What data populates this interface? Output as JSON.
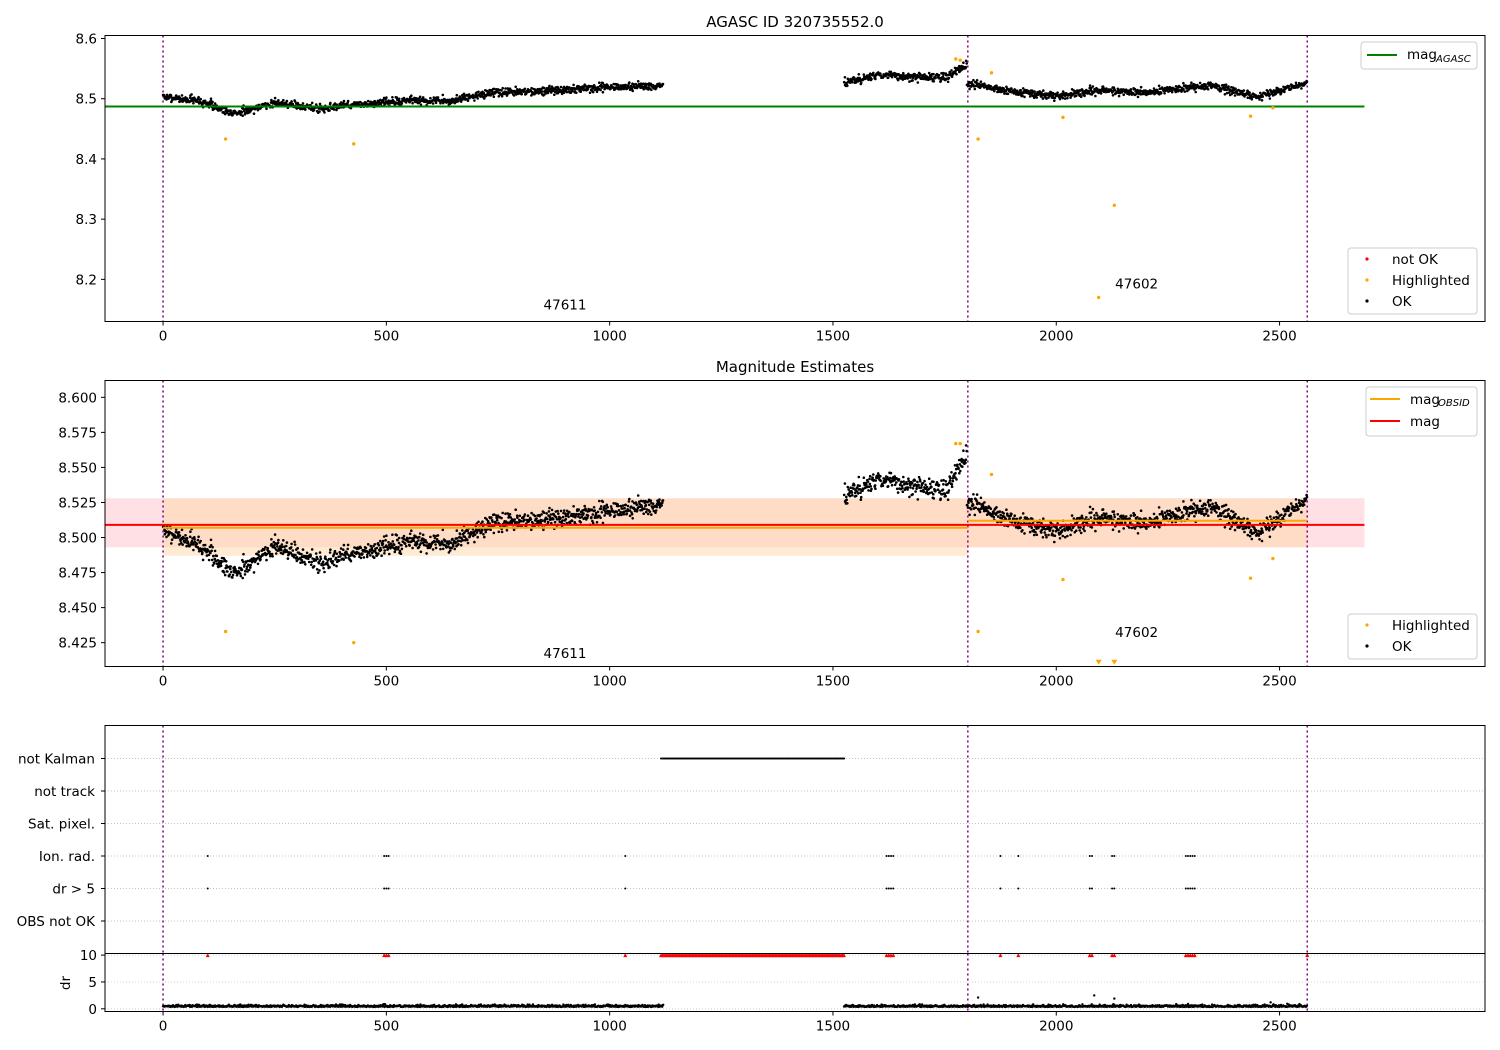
{
  "chart_data": [
    {
      "type": "scatter",
      "title": "AGASC ID 320735552.0",
      "xlim": [
        -130,
        2960
      ],
      "ylim": [
        8.13,
        8.605
      ],
      "xticks": [
        "0",
        "500",
        "1000",
        "1500",
        "2000",
        "2500"
      ],
      "xtick_values": [
        0,
        500,
        1000,
        1500,
        2000,
        2500
      ],
      "yticks": [
        "8.2",
        "8.3",
        "8.4",
        "8.5",
        "8.6"
      ],
      "ytick_values": [
        8.2,
        8.3,
        8.4,
        8.5,
        8.6
      ],
      "vlines": [
        0,
        1802,
        2562
      ],
      "obsid_labels": [
        {
          "text": "47611",
          "x": 900,
          "y": 8.15
        },
        {
          "text": "47602",
          "x": 2180,
          "y": 8.185
        }
      ],
      "mag_agasc": {
        "value": 8.487,
        "x": [
          -130,
          2690
        ],
        "color": "#008000"
      },
      "legend_top": [
        {
          "label": "mag",
          "sub": "AGASC",
          "color": "#008000"
        }
      ],
      "legend_bottom": [
        {
          "label": "not OK",
          "color": "#ff0000"
        },
        {
          "label": "Highlighted",
          "color": "#ffa500"
        },
        {
          "label": "OK",
          "color": "#000000"
        }
      ],
      "highlighted": [
        [
          140,
          8.433
        ],
        [
          427,
          8.425
        ],
        [
          1775,
          8.566
        ],
        [
          1785,
          8.564
        ],
        [
          1825,
          8.433
        ],
        [
          1855,
          8.543
        ],
        [
          2015,
          8.469
        ],
        [
          2095,
          8.17
        ],
        [
          2130,
          8.323
        ],
        [
          2435,
          8.471
        ],
        [
          2485,
          8.485
        ]
      ],
      "ok_segments": [
        {
          "x": [
            0,
            1120
          ],
          "y": [
            [
              0,
              8.503
            ],
            [
              80,
              8.497
            ],
            [
              160,
              8.475
            ],
            [
              250,
              8.493
            ],
            [
              350,
              8.484
            ],
            [
              450,
              8.491
            ],
            [
              550,
              8.497
            ],
            [
              650,
              8.496
            ],
            [
              730,
              8.51
            ],
            [
              850,
              8.512
            ],
            [
              950,
              8.518
            ],
            [
              1120,
              8.522
            ]
          ],
          "noise": 0.0055
        },
        {
          "x": [
            1525,
            1800
          ],
          "y": [
            [
              1525,
              8.525
            ],
            [
              1600,
              8.54
            ],
            [
              1700,
              8.535
            ],
            [
              1750,
              8.535
            ],
            [
              1800,
              8.555
            ]
          ],
          "noise": 0.006
        },
        {
          "x": [
            1800,
            2562
          ],
          "y": [
            [
              1800,
              8.525
            ],
            [
              1900,
              8.512
            ],
            [
              2000,
              8.505
            ],
            [
              2100,
              8.514
            ],
            [
              2200,
              8.51
            ],
            [
              2350,
              8.522
            ],
            [
              2450,
              8.503
            ],
            [
              2562,
              8.525
            ]
          ],
          "noise": 0.0055
        }
      ]
    },
    {
      "type": "scatter",
      "title": "Magnitude Estimates",
      "xlim": [
        -130,
        2960
      ],
      "ylim": [
        8.408,
        8.612
      ],
      "xticks": [
        "0",
        "500",
        "1000",
        "1500",
        "2000",
        "2500"
      ],
      "xtick_values": [
        0,
        500,
        1000,
        1500,
        2000,
        2500
      ],
      "yticks": [
        "8.425",
        "8.450",
        "8.475",
        "8.500",
        "8.525",
        "8.550",
        "8.575",
        "8.600"
      ],
      "ytick_values": [
        8.425,
        8.45,
        8.475,
        8.5,
        8.525,
        8.55,
        8.575,
        8.6
      ],
      "vlines": [
        0,
        1802,
        2562
      ],
      "obsid_labels": [
        {
          "text": "47611",
          "x": 900,
          "y": 8.414
        },
        {
          "text": "47602",
          "x": 2180,
          "y": 8.429
        }
      ],
      "mag_line": {
        "value": 8.509,
        "x": [
          -130,
          2690
        ],
        "band": [
          8.493,
          8.528
        ],
        "color": "#ff0000",
        "band_color": "#ff9aa8"
      },
      "obsid_mag": [
        {
          "x": [
            0,
            1802
          ],
          "value": 8.507,
          "band": [
            8.487,
            8.528
          ],
          "color": "#ffa500",
          "band_color": "#ffd8a8"
        },
        {
          "x": [
            1802,
            2562
          ],
          "value": 8.512,
          "band": [
            8.493,
            8.528
          ],
          "color": "#ffa500",
          "band_color": "#ffd8a8"
        }
      ],
      "legend_top": [
        {
          "label": "mag",
          "sub": "OBSID",
          "color": "#ffa500"
        },
        {
          "label": "mag",
          "sub": "",
          "color": "#ff0000"
        }
      ],
      "legend_bottom": [
        {
          "label": "Highlighted",
          "color": "#ffa500"
        },
        {
          "label": "OK",
          "color": "#000000"
        }
      ],
      "highlighted": [
        [
          140,
          8.433
        ],
        [
          427,
          8.425
        ],
        [
          1775,
          8.567
        ],
        [
          1785,
          8.567
        ],
        [
          1825,
          8.433
        ],
        [
          1855,
          8.545
        ],
        [
          2015,
          8.47
        ],
        [
          2435,
          8.471
        ],
        [
          2485,
          8.485
        ]
      ],
      "lower_limits": [
        [
          2095,
          8.41
        ],
        [
          2130,
          8.41
        ]
      ],
      "ok_segments": [
        {
          "x": [
            0,
            1120
          ],
          "y": [
            [
              0,
              8.505
            ],
            [
              80,
              8.495
            ],
            [
              160,
              8.474
            ],
            [
              250,
              8.494
            ],
            [
              350,
              8.482
            ],
            [
              450,
              8.49
            ],
            [
              550,
              8.497
            ],
            [
              650,
              8.495
            ],
            [
              730,
              8.51
            ],
            [
              850,
              8.512
            ],
            [
              950,
              8.517
            ],
            [
              1120,
              8.524
            ]
          ],
          "noise": 0.0055
        },
        {
          "x": [
            1525,
            1800
          ],
          "y": [
            [
              1525,
              8.528
            ],
            [
              1600,
              8.542
            ],
            [
              1700,
              8.535
            ],
            [
              1750,
              8.533
            ],
            [
              1800,
              8.558
            ]
          ],
          "noise": 0.006
        },
        {
          "x": [
            1800,
            2562
          ],
          "y": [
            [
              1800,
              8.525
            ],
            [
              1900,
              8.512
            ],
            [
              2000,
              8.505
            ],
            [
              2100,
              8.514
            ],
            [
              2200,
              8.51
            ],
            [
              2350,
              8.522
            ],
            [
              2450,
              8.503
            ],
            [
              2562,
              8.526
            ]
          ],
          "noise": 0.0055
        }
      ]
    },
    {
      "type": "scatter",
      "title": "",
      "xlim": [
        -130,
        2960
      ],
      "categories": [
        "not Kalman",
        "not track",
        "Sat. pixel.",
        "Ion. rad.",
        "dr > 5",
        "OBS not OK"
      ],
      "vlines": [
        0,
        1802,
        2562
      ],
      "not_kalman": [
        1115,
        1525
      ],
      "ion_rad": [
        100,
        495,
        500,
        505,
        1035,
        1620,
        1625,
        1630,
        1635,
        1875,
        1915,
        2075,
        2080,
        2125,
        2130,
        2290,
        2295,
        2300,
        2305,
        2310
      ],
      "dr_gt_5": [
        100,
        495,
        500,
        505,
        1035,
        1620,
        1625,
        1630,
        1635,
        1875,
        1915,
        2075,
        2080,
        2125,
        2130,
        2290,
        2295,
        2300,
        2305,
        2310
      ]
    },
    {
      "type": "scatter",
      "title": "",
      "ylabel": "dr",
      "xlim": [
        -130,
        2960
      ],
      "ylim": [
        -0.5,
        10.3
      ],
      "xticks": [
        "0",
        "500",
        "1000",
        "1500",
        "2000",
        "2500"
      ],
      "xtick_values": [
        0,
        500,
        1000,
        1500,
        2000,
        2500
      ],
      "yticks": [
        "0",
        "5",
        "10"
      ],
      "ytick_values": [
        0,
        5,
        10
      ],
      "vlines": [
        0,
        1802,
        2562
      ],
      "clipped_markers": {
        "value": 10,
        "x": [
          100,
          495,
          500,
          505,
          1035,
          1620,
          1625,
          1630,
          1635,
          1875,
          1915,
          2075,
          2080,
          2125,
          2130,
          2290,
          2295,
          2300,
          2305,
          2310,
          2562
        ],
        "range": [
          1115,
          1525
        ]
      },
      "dr_segments": [
        [
          0,
          1120
        ],
        [
          1525,
          2562
        ]
      ],
      "dr_outliers": [
        [
          1825,
          2.1
        ],
        [
          2085,
          2.5
        ],
        [
          2130,
          1.9
        ],
        [
          2480,
          1.2
        ]
      ]
    }
  ]
}
